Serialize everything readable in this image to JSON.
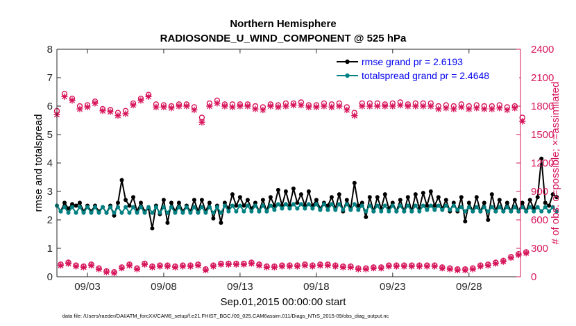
{
  "colors": {
    "rmse": "#000000",
    "spread": "#008080",
    "obs": "#d6145a",
    "legend_text": "#0000ee",
    "axis": "#262626"
  },
  "chart_data": {
    "type": "line",
    "title": "Northern Hemisphere",
    "subtitle": "RADIOSONDE_U_WIND_COMPONENT @ 525 hPa",
    "xlabel": "Sep.01,2015 00:00:00 start",
    "ylabel": "rmse and totalspread",
    "y2label": "# of obs: o=possible; ×=assimilated",
    "footnote": "data file: /Users/raeder/DAI/ATM_forcXX/CAM6_setup/f.e21.FHIST_BGC.f09_025.CAM6assim.011/Diags_NTrS_2015-09/obs_diag_output.nc",
    "xlim": [
      0.5,
      30.875
    ],
    "ylim": [
      0,
      8
    ],
    "y2lim": [
      0,
      2400
    ],
    "x_ticks": [
      {
        "value": 2.5,
        "label": "09/03"
      },
      {
        "value": 7.5,
        "label": "09/08"
      },
      {
        "value": 12.5,
        "label": "09/13"
      },
      {
        "value": 17.5,
        "label": "09/18"
      },
      {
        "value": 22.5,
        "label": "09/23"
      },
      {
        "value": 27.5,
        "label": "09/28"
      }
    ],
    "y_ticks": [
      {
        "value": 0,
        "label": "0"
      },
      {
        "value": 1,
        "label": "1"
      },
      {
        "value": 2,
        "label": "2"
      },
      {
        "value": 3,
        "label": "3"
      },
      {
        "value": 4,
        "label": "4"
      },
      {
        "value": 5,
        "label": "5"
      },
      {
        "value": 6,
        "label": "6"
      },
      {
        "value": 7,
        "label": "7"
      },
      {
        "value": 8,
        "label": "8"
      }
    ],
    "y2_ticks": [
      {
        "value": 0,
        "label": "0"
      },
      {
        "value": 300,
        "label": "300"
      },
      {
        "value": 600,
        "label": "600"
      },
      {
        "value": 900,
        "label": "900"
      },
      {
        "value": 1200,
        "label": "1200"
      },
      {
        "value": 1500,
        "label": "1500"
      },
      {
        "value": 1800,
        "label": "1800"
      },
      {
        "value": 2100,
        "label": "2100"
      },
      {
        "value": 2400,
        "label": "2400"
      }
    ],
    "x_start": 0.5,
    "x_step": 0.25,
    "series": [
      {
        "name": "rmse grand pr = 2.6193",
        "axis": "left",
        "marker": "dot",
        "values": [
          2.5,
          2.3,
          2.6,
          2.4,
          2.55,
          2.5,
          2.6,
          2.3,
          2.5,
          2.3,
          2.5,
          2.3,
          2.45,
          2.25,
          2.5,
          2.15,
          2.6,
          3.4,
          2.7,
          2.5,
          2.8,
          2.3,
          2.6,
          2.3,
          2.4,
          1.7,
          2.5,
          2.2,
          2.7,
          1.9,
          2.6,
          2.3,
          2.6,
          2.3,
          2.5,
          2.3,
          2.7,
          2.3,
          2.7,
          2.3,
          2.6,
          2.05,
          2.5,
          1.9,
          2.6,
          2.4,
          2.9,
          2.5,
          2.8,
          2.5,
          2.7,
          2.4,
          2.6,
          2.3,
          2.7,
          2.3,
          2.8,
          2.5,
          3.05,
          2.5,
          3.0,
          2.5,
          3.1,
          2.6,
          2.9,
          2.5,
          3.0,
          2.5,
          2.7,
          2.4,
          2.6,
          2.5,
          2.8,
          2.4,
          2.9,
          2.3,
          2.7,
          2.4,
          3.3,
          2.5,
          2.6,
          2.1,
          2.8,
          2.3,
          2.8,
          2.4,
          2.9,
          2.4,
          2.6,
          2.3,
          2.7,
          2.3,
          2.8,
          2.3,
          2.9,
          2.4,
          2.95,
          2.5,
          3.0,
          2.5,
          2.8,
          2.4,
          2.7,
          2.3,
          2.6,
          2.3,
          2.8,
          1.95,
          2.6,
          2.3,
          2.8,
          2.3,
          2.6,
          2.0,
          2.9,
          2.3,
          2.7,
          2.3,
          2.6,
          2.3,
          2.7,
          2.3,
          2.6,
          2.3,
          2.7,
          2.4,
          2.8,
          4.15,
          2.6,
          2.5,
          2.9,
          2.8
        ]
      },
      {
        "name": "totalspread grand pr = 2.4648",
        "axis": "left",
        "marker": "dot",
        "values": [
          2.5,
          2.3,
          2.45,
          2.25,
          2.45,
          2.25,
          2.45,
          2.25,
          2.45,
          2.25,
          2.45,
          2.25,
          2.45,
          2.25,
          2.45,
          2.25,
          2.45,
          2.25,
          2.45,
          2.25,
          2.45,
          2.25,
          2.45,
          2.25,
          2.45,
          2.25,
          2.45,
          2.25,
          2.45,
          2.25,
          2.45,
          2.25,
          2.45,
          2.25,
          2.45,
          2.25,
          2.45,
          2.25,
          2.45,
          2.25,
          2.45,
          2.25,
          2.45,
          2.25,
          2.5,
          2.3,
          2.5,
          2.3,
          2.5,
          2.3,
          2.5,
          2.3,
          2.5,
          2.3,
          2.5,
          2.3,
          2.5,
          2.35,
          2.55,
          2.4,
          2.55,
          2.4,
          2.55,
          2.4,
          2.55,
          2.4,
          2.55,
          2.4,
          2.55,
          2.35,
          2.55,
          2.35,
          2.55,
          2.35,
          2.55,
          2.35,
          2.55,
          2.35,
          2.55,
          2.35,
          2.5,
          2.3,
          2.5,
          2.3,
          2.5,
          2.3,
          2.5,
          2.3,
          2.5,
          2.3,
          2.5,
          2.3,
          2.5,
          2.3,
          2.5,
          2.3,
          2.5,
          2.35,
          2.5,
          2.35,
          2.5,
          2.35,
          2.5,
          2.35,
          2.5,
          2.35,
          2.45,
          2.3,
          2.45,
          2.3,
          2.45,
          2.3,
          2.45,
          2.3,
          2.45,
          2.3,
          2.45,
          2.3,
          2.45,
          2.3,
          2.45,
          2.3,
          2.45,
          2.3,
          2.45,
          2.3,
          2.45,
          2.3,
          2.45,
          2.3,
          2.45,
          2.3
        ]
      },
      {
        "name": "obs possible",
        "axis": "right",
        "marker": "circle",
        "values": [
          1750,
          130,
          1930,
          150,
          1880,
          120,
          1800,
          110,
          1810,
          130,
          1850,
          90,
          1770,
          60,
          1760,
          50,
          1730,
          100,
          1750,
          130,
          1830,
          90,
          1880,
          140,
          1920,
          110,
          1820,
          120,
          1810,
          120,
          1800,
          110,
          1820,
          120,
          1820,
          120,
          1790,
          130,
          1680,
          80,
          1830,
          120,
          1860,
          140,
          1820,
          140,
          1820,
          140,
          1820,
          140,
          1820,
          150,
          1800,
          130,
          1790,
          110,
          1820,
          110,
          1810,
          120,
          1830,
          120,
          1830,
          120,
          1840,
          130,
          1810,
          120,
          1810,
          130,
          1830,
          130,
          1820,
          120,
          1830,
          110,
          1790,
          110,
          1730,
          90,
          1830,
          90,
          1830,
          100,
          1830,
          100,
          1820,
          120,
          1830,
          120,
          1840,
          120,
          1820,
          120,
          1830,
          120,
          1830,
          120,
          1830,
          120,
          1800,
          100,
          1810,
          90,
          1800,
          80,
          1820,
          80,
          1800,
          90,
          1810,
          120,
          1800,
          130,
          1800,
          150,
          1810,
          170,
          1790,
          210,
          1800,
          240,
          1680,
          260
        ]
      },
      {
        "name": "obs assimilated",
        "axis": "right",
        "marker": "x",
        "values": [
          1710,
          120,
          1900,
          140,
          1860,
          110,
          1770,
          100,
          1790,
          120,
          1830,
          80,
          1750,
          50,
          1740,
          40,
          1700,
          90,
          1720,
          120,
          1810,
          80,
          1860,
          130,
          1900,
          100,
          1790,
          110,
          1790,
          110,
          1780,
          100,
          1800,
          110,
          1800,
          110,
          1760,
          120,
          1630,
          70,
          1800,
          110,
          1830,
          130,
          1800,
          130,
          1790,
          130,
          1800,
          130,
          1800,
          140,
          1770,
          120,
          1760,
          100,
          1800,
          100,
          1790,
          110,
          1800,
          110,
          1810,
          110,
          1810,
          120,
          1790,
          110,
          1790,
          120,
          1800,
          120,
          1790,
          110,
          1800,
          100,
          1760,
          100,
          1700,
          80,
          1800,
          80,
          1800,
          90,
          1800,
          90,
          1800,
          110,
          1800,
          110,
          1810,
          110,
          1800,
          110,
          1800,
          110,
          1800,
          110,
          1800,
          110,
          1770,
          90,
          1780,
          80,
          1770,
          70,
          1790,
          70,
          1770,
          80,
          1780,
          110,
          1770,
          120,
          1770,
          140,
          1780,
          160,
          1760,
          200,
          1780,
          230,
          1640,
          250
        ]
      }
    ],
    "legend": [
      {
        "label": "rmse grand pr = 2.6193"
      },
      {
        "label": "totalspread grand pr = 2.4648"
      }
    ]
  }
}
